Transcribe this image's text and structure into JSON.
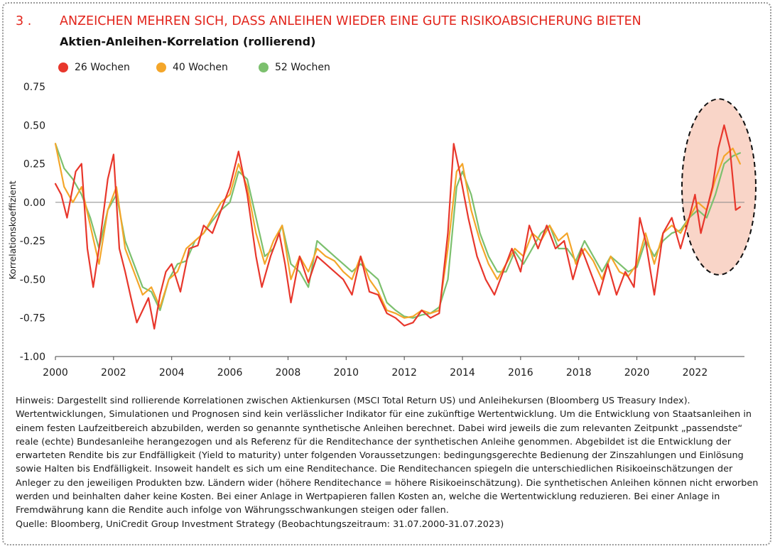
{
  "header": {
    "number": "3 .",
    "title": "ANZEICHEN MEHREN SICH, DASS ANLEIHEN WIEDER EINE GUTE RISIKOABSICHERUNG BIETEN"
  },
  "subtitle": "Aktien-Anleihen-Korrelation (rollierend)",
  "notes": {
    "hinweis": "Hinweis: Dargestellt sind rollierende Korrelationen zwischen Aktienkursen (MSCI Total Return US) und Anleihekursen (Bloomberg US Treasury Index). Wertentwicklungen, Simulationen und Prognosen sind kein verlässlicher Indikator für eine zukünftige Wertentwicklung. Um die Entwicklung von Staatsanleihen in einem festen Laufzeitbereich abzubilden, werden so genannte synthetische Anleihen berechnet. Dabei wird jeweils die zum relevanten Zeitpunkt „passendste“ reale (echte) Bundesanleihe herangezogen und als Referenz für die Renditechance der synthetischen Anleihe genommen. Abgebildet ist die Entwicklung der erwarteten Rendite bis zur Endfälligkeit (Yield to maturity) unter folgenden Voraussetzungen: bedingungsgerechte Bedienung der Zinszahlungen und Einlösung sowie Halten bis Endfälligkeit. Insoweit handelt es sich um eine Renditechance. Die Renditechancen spiegeln die unterschiedlichen Risikoeinschätzungen der Anleger zu den jeweiligen Produkten bzw. Ländern wider (höhere Renditechance = höhere Risikoeinschätzung). Die synthetischen Anleihen können nicht erworben werden und beinhalten daher keine Kosten. Bei einer Anlage in Wertpapieren fallen Kosten an, welche die Wertentwicklung reduzieren. Bei einer Anlage in Fremdwährung kann die Rendite auch infolge von Währungsschwankungen steigen oder fallen.",
    "quelle": "Quelle: Bloomberg, UniCredit Group Investment Strategy (Beobachtungszeitraum: 31.07.2000-31.07.2023)"
  },
  "colors": {
    "title": "#e2251c",
    "highlight_fill": "#f9d5c8"
  },
  "chart_data": {
    "type": "line",
    "ylabel": "Korrelationskoeffizient",
    "xlabel": "",
    "xlim": [
      2000,
      2023.7
    ],
    "ylim": [
      -1.0,
      0.75
    ],
    "yticks": [
      0.75,
      0.5,
      0.25,
      0.0,
      -0.25,
      -0.5,
      -0.75,
      -1.0
    ],
    "ytick_labels": [
      "0.75",
      "0.50",
      "0.25",
      "0.00",
      "-0.25",
      "-0.50",
      "-0.75",
      "-1.00"
    ],
    "xticks": [
      2000,
      2002,
      2004,
      2006,
      2008,
      2010,
      2012,
      2014,
      2016,
      2018,
      2020,
      2022
    ],
    "xtick_labels": [
      "2000",
      "2002",
      "2004",
      "2006",
      "2008",
      "2010",
      "2012",
      "2014",
      "2016",
      "2018",
      "2020",
      "2022"
    ],
    "grid": false,
    "zero_line": true,
    "legend_position": "top-left",
    "highlight": {
      "x_center": 2022.82,
      "y_center": 0.1,
      "x_radius": 1.27,
      "y_radius": 0.57
    },
    "series": [
      {
        "name": "26 Wochen",
        "color": "#e8372c",
        "x": [
          2000.0,
          2000.2,
          2000.4,
          2000.7,
          2000.9,
          2001.1,
          2001.3,
          2001.5,
          2001.8,
          2002.0,
          2002.2,
          2002.4,
          2002.6,
          2002.8,
          2003.0,
          2003.2,
          2003.4,
          2003.6,
          2003.8,
          2004.0,
          2004.3,
          2004.6,
          2004.9,
          2005.1,
          2005.4,
          2005.7,
          2006.0,
          2006.3,
          2006.6,
          2006.9,
          2007.1,
          2007.4,
          2007.7,
          2007.9,
          2008.1,
          2008.4,
          2008.7,
          2009.0,
          2009.3,
          2009.6,
          2009.9,
          2010.2,
          2010.5,
          2010.8,
          2011.1,
          2011.4,
          2011.7,
          2012.0,
          2012.3,
          2012.6,
          2012.9,
          2013.2,
          2013.5,
          2013.7,
          2013.9,
          2014.2,
          2014.5,
          2014.8,
          2015.1,
          2015.4,
          2015.7,
          2016.0,
          2016.3,
          2016.6,
          2016.9,
          2017.2,
          2017.5,
          2017.8,
          2018.1,
          2018.4,
          2018.7,
          2019.0,
          2019.3,
          2019.6,
          2019.9,
          2020.1,
          2020.3,
          2020.6,
          2020.9,
          2021.2,
          2021.5,
          2021.8,
          2022.0,
          2022.2,
          2022.4,
          2022.6,
          2022.8,
          2023.0,
          2023.2,
          2023.4,
          2023.55
        ],
        "y": [
          0.12,
          0.05,
          -0.1,
          0.2,
          0.25,
          -0.3,
          -0.55,
          -0.3,
          0.15,
          0.31,
          -0.3,
          -0.45,
          -0.62,
          -0.78,
          -0.7,
          -0.62,
          -0.82,
          -0.6,
          -0.45,
          -0.4,
          -0.58,
          -0.3,
          -0.28,
          -0.15,
          -0.2,
          -0.05,
          0.1,
          0.33,
          0.05,
          -0.35,
          -0.55,
          -0.35,
          -0.2,
          -0.4,
          -0.65,
          -0.35,
          -0.52,
          -0.35,
          -0.4,
          -0.45,
          -0.5,
          -0.6,
          -0.35,
          -0.58,
          -0.6,
          -0.72,
          -0.75,
          -0.8,
          -0.78,
          -0.7,
          -0.75,
          -0.72,
          -0.2,
          0.38,
          0.2,
          -0.1,
          -0.35,
          -0.5,
          -0.6,
          -0.45,
          -0.3,
          -0.45,
          -0.15,
          -0.3,
          -0.15,
          -0.3,
          -0.25,
          -0.5,
          -0.3,
          -0.45,
          -0.6,
          -0.4,
          -0.6,
          -0.45,
          -0.55,
          -0.1,
          -0.25,
          -0.6,
          -0.2,
          -0.1,
          -0.3,
          -0.1,
          0.05,
          -0.2,
          -0.05,
          0.1,
          0.35,
          0.5,
          0.35,
          -0.05,
          -0.03
        ]
      },
      {
        "name": "40 Wochen",
        "color": "#f4a62a",
        "x": [
          2000.0,
          2000.3,
          2000.6,
          2000.9,
          2001.2,
          2001.5,
          2001.8,
          2002.1,
          2002.4,
          2002.7,
          2003.0,
          2003.3,
          2003.6,
          2003.9,
          2004.2,
          2004.5,
          2004.8,
          2005.1,
          2005.4,
          2005.7,
          2006.0,
          2006.3,
          2006.6,
          2006.9,
          2007.2,
          2007.5,
          2007.8,
          2008.1,
          2008.4,
          2008.7,
          2009.0,
          2009.3,
          2009.6,
          2009.9,
          2010.2,
          2010.5,
          2010.8,
          2011.1,
          2011.4,
          2011.7,
          2012.0,
          2012.3,
          2012.6,
          2012.9,
          2013.2,
          2013.5,
          2013.8,
          2014.0,
          2014.3,
          2014.6,
          2014.9,
          2015.2,
          2015.5,
          2015.8,
          2016.1,
          2016.4,
          2016.7,
          2017.0,
          2017.3,
          2017.6,
          2017.9,
          2018.2,
          2018.5,
          2018.8,
          2019.1,
          2019.4,
          2019.7,
          2020.0,
          2020.3,
          2020.6,
          2020.9,
          2021.2,
          2021.5,
          2021.8,
          2022.1,
          2022.4,
          2022.7,
          2023.0,
          2023.3,
          2023.55
        ],
        "y": [
          0.38,
          0.1,
          0.0,
          0.1,
          -0.15,
          -0.4,
          -0.05,
          0.1,
          -0.3,
          -0.45,
          -0.6,
          -0.55,
          -0.68,
          -0.5,
          -0.45,
          -0.3,
          -0.25,
          -0.2,
          -0.1,
          0.0,
          0.05,
          0.25,
          0.1,
          -0.2,
          -0.4,
          -0.25,
          -0.15,
          -0.5,
          -0.35,
          -0.45,
          -0.3,
          -0.35,
          -0.38,
          -0.45,
          -0.5,
          -0.35,
          -0.5,
          -0.58,
          -0.7,
          -0.72,
          -0.75,
          -0.74,
          -0.7,
          -0.72,
          -0.7,
          -0.3,
          0.2,
          0.25,
          -0.05,
          -0.25,
          -0.4,
          -0.5,
          -0.4,
          -0.3,
          -0.35,
          -0.2,
          -0.25,
          -0.15,
          -0.25,
          -0.2,
          -0.4,
          -0.3,
          -0.38,
          -0.5,
          -0.35,
          -0.45,
          -0.48,
          -0.4,
          -0.2,
          -0.4,
          -0.2,
          -0.15,
          -0.2,
          -0.1,
          0.0,
          -0.05,
          0.15,
          0.3,
          0.35,
          0.25
        ]
      },
      {
        "name": "52 Wochen",
        "color": "#7cc06e",
        "x": [
          2000.0,
          2000.3,
          2000.6,
          2000.9,
          2001.2,
          2001.5,
          2001.8,
          2002.1,
          2002.4,
          2002.7,
          2003.0,
          2003.3,
          2003.6,
          2003.9,
          2004.2,
          2004.5,
          2004.8,
          2005.1,
          2005.4,
          2005.7,
          2006.0,
          2006.3,
          2006.6,
          2006.9,
          2007.2,
          2007.5,
          2007.8,
          2008.1,
          2008.4,
          2008.7,
          2009.0,
          2009.3,
          2009.6,
          2009.9,
          2010.2,
          2010.5,
          2010.8,
          2011.1,
          2011.4,
          2011.7,
          2012.0,
          2012.3,
          2012.6,
          2012.9,
          2013.2,
          2013.5,
          2013.8,
          2014.0,
          2014.3,
          2014.6,
          2014.9,
          2015.2,
          2015.5,
          2015.8,
          2016.1,
          2016.4,
          2016.7,
          2017.0,
          2017.3,
          2017.6,
          2017.9,
          2018.2,
          2018.5,
          2018.8,
          2019.1,
          2019.4,
          2019.7,
          2020.0,
          2020.3,
          2020.6,
          2020.9,
          2021.2,
          2021.5,
          2021.8,
          2022.1,
          2022.4,
          2022.7,
          2023.0,
          2023.3,
          2023.55
        ],
        "y": [
          0.38,
          0.22,
          0.15,
          0.05,
          -0.1,
          -0.3,
          -0.05,
          0.05,
          -0.25,
          -0.4,
          -0.55,
          -0.58,
          -0.7,
          -0.5,
          -0.4,
          -0.38,
          -0.25,
          -0.2,
          -0.12,
          -0.05,
          0.0,
          0.2,
          0.15,
          -0.1,
          -0.35,
          -0.3,
          -0.15,
          -0.4,
          -0.45,
          -0.55,
          -0.25,
          -0.3,
          -0.35,
          -0.4,
          -0.45,
          -0.4,
          -0.45,
          -0.5,
          -0.65,
          -0.7,
          -0.74,
          -0.75,
          -0.73,
          -0.72,
          -0.68,
          -0.5,
          0.1,
          0.2,
          0.05,
          -0.2,
          -0.35,
          -0.45,
          -0.45,
          -0.32,
          -0.4,
          -0.3,
          -0.2,
          -0.15,
          -0.3,
          -0.3,
          -0.38,
          -0.25,
          -0.35,
          -0.45,
          -0.35,
          -0.4,
          -0.45,
          -0.42,
          -0.25,
          -0.35,
          -0.25,
          -0.2,
          -0.18,
          -0.1,
          -0.05,
          -0.1,
          0.05,
          0.25,
          0.3,
          0.32
        ]
      }
    ]
  }
}
